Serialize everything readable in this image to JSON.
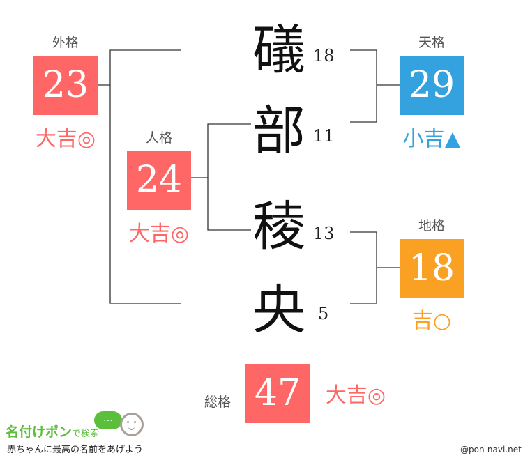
{
  "colors": {
    "red": "#FF6666",
    "blue": "#35A2E0",
    "orange": "#FAA023",
    "line": "#333333"
  },
  "name_chars": [
    {
      "char": "礒",
      "strokes": "18"
    },
    {
      "char": "部",
      "strokes": "11"
    },
    {
      "char": "稜",
      "strokes": "13"
    },
    {
      "char": "央",
      "strokes": "5"
    }
  ],
  "gaikaku": {
    "label": "外格",
    "value": "23",
    "result": "大吉◎"
  },
  "jinkaku": {
    "label": "人格",
    "value": "24",
    "result": "大吉◎"
  },
  "tenkaku": {
    "label": "天格",
    "value": "29",
    "result": "小吉▲"
  },
  "chikaku": {
    "label": "地格",
    "value": "18",
    "result": "吉○"
  },
  "soukaku": {
    "label": "総格",
    "value": "47",
    "result": "大吉◎"
  },
  "logo": {
    "title": "名付けポン",
    "suffix": "で検索",
    "tagline": "赤ちゃんに最高の名前をあげよう",
    "bubble": "…"
  },
  "credit": "@pon-navi.net"
}
